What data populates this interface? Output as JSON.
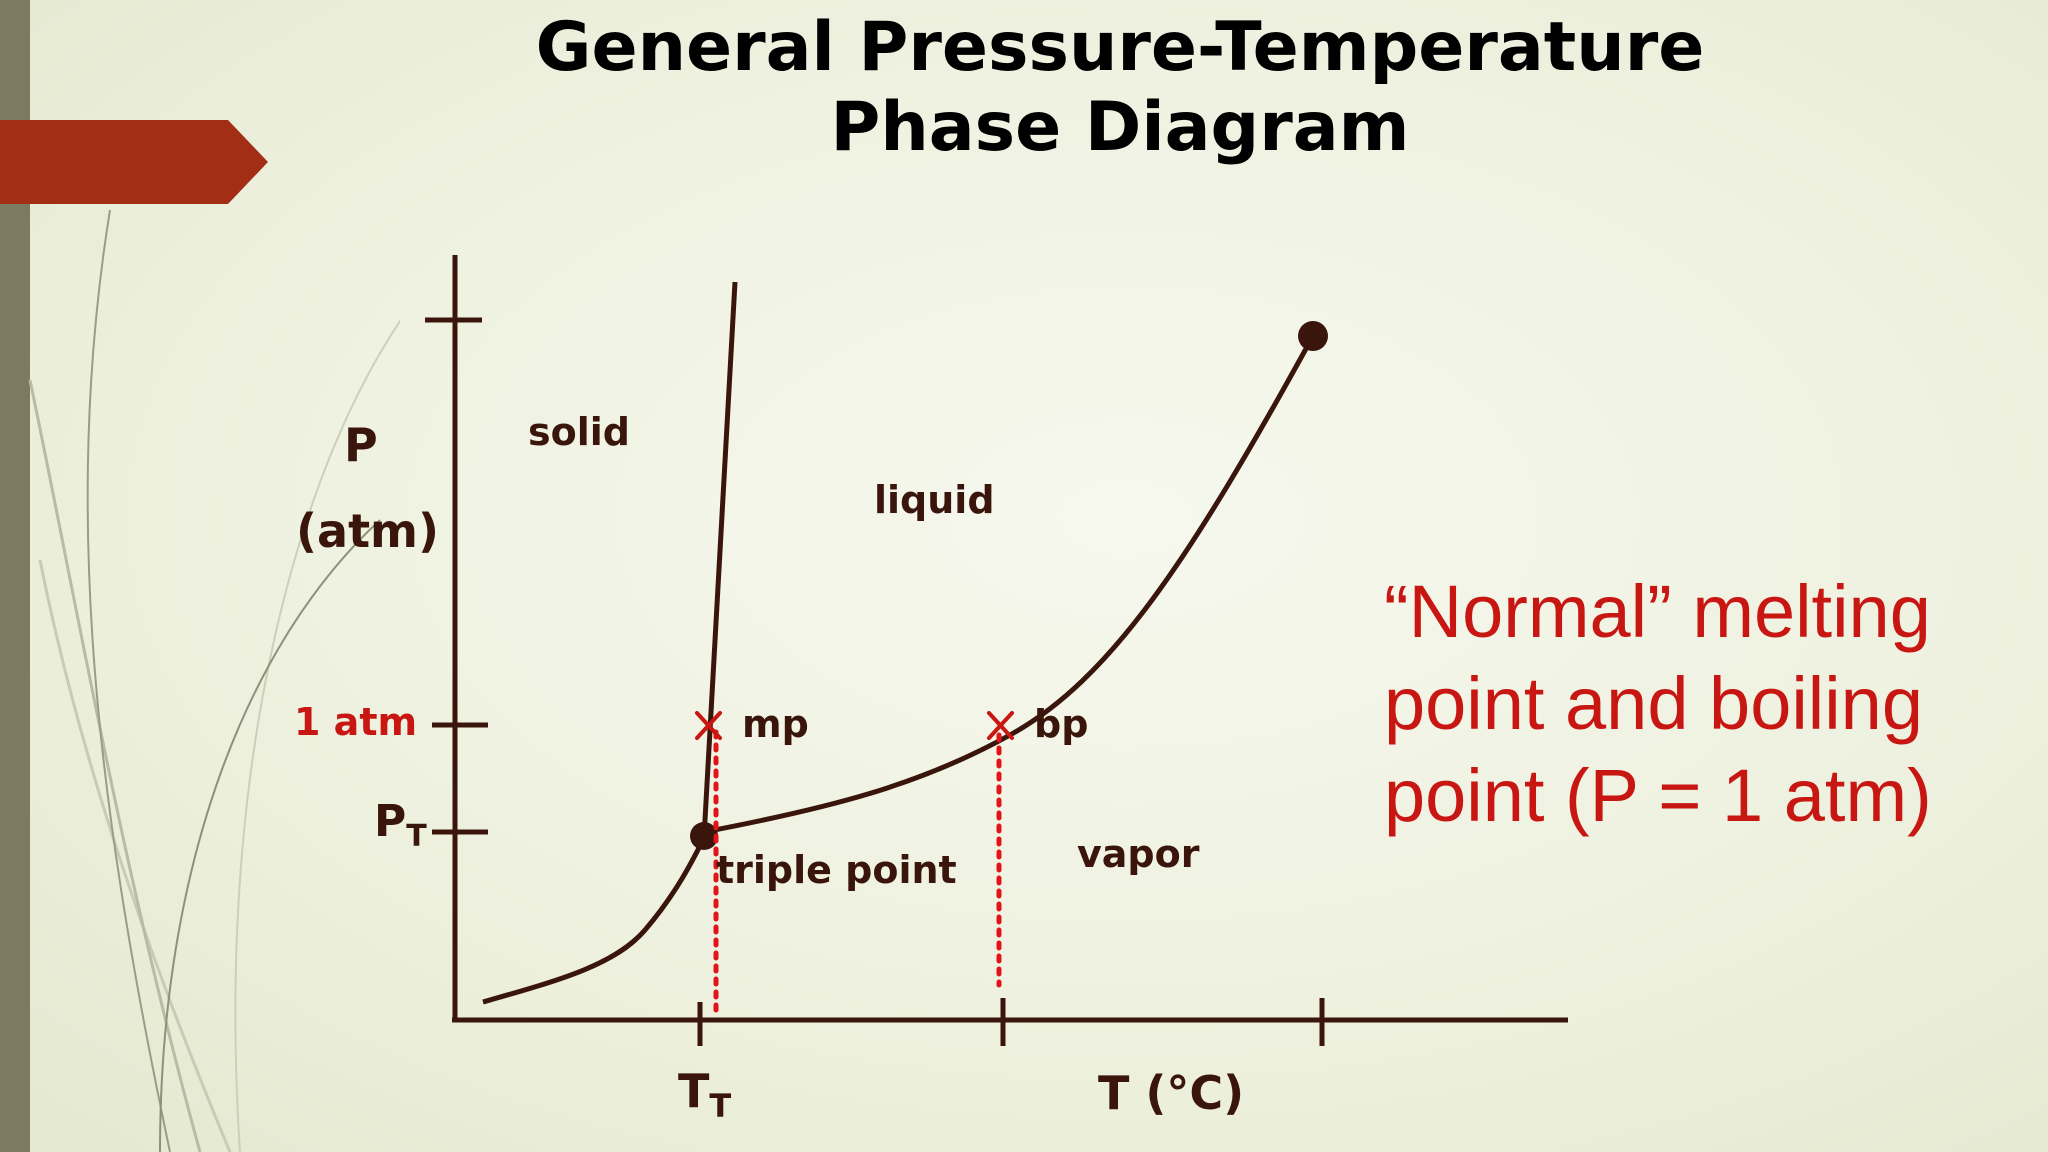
{
  "slide": {
    "title_line1": "General Pressure-Temperature",
    "title_line2": "Phase Diagram",
    "colors": {
      "curve": "#3a150c",
      "highlight": "#c81612",
      "ribbon": "#a32e16",
      "sidebar": "#7d7a62"
    }
  },
  "diagram": {
    "y_axis_label_line1": "P",
    "y_axis_label_line2": "(atm)",
    "x_axis_label": "T (°C)",
    "y_ticks": {
      "one_atm": "1 atm",
      "pt_main": "P",
      "pt_sub": "T"
    },
    "x_ticks": {
      "tt_main": "T",
      "tt_sub": "T"
    },
    "regions": {
      "solid": "solid",
      "liquid": "liquid",
      "vapor": "vapor"
    },
    "points": {
      "triple_point": "triple point",
      "melting_point": "mp",
      "boiling_point": "bp"
    }
  },
  "note": {
    "line1": "“Normal” melting",
    "line2": "point and boiling",
    "line3": "point (P = 1 atm)"
  }
}
